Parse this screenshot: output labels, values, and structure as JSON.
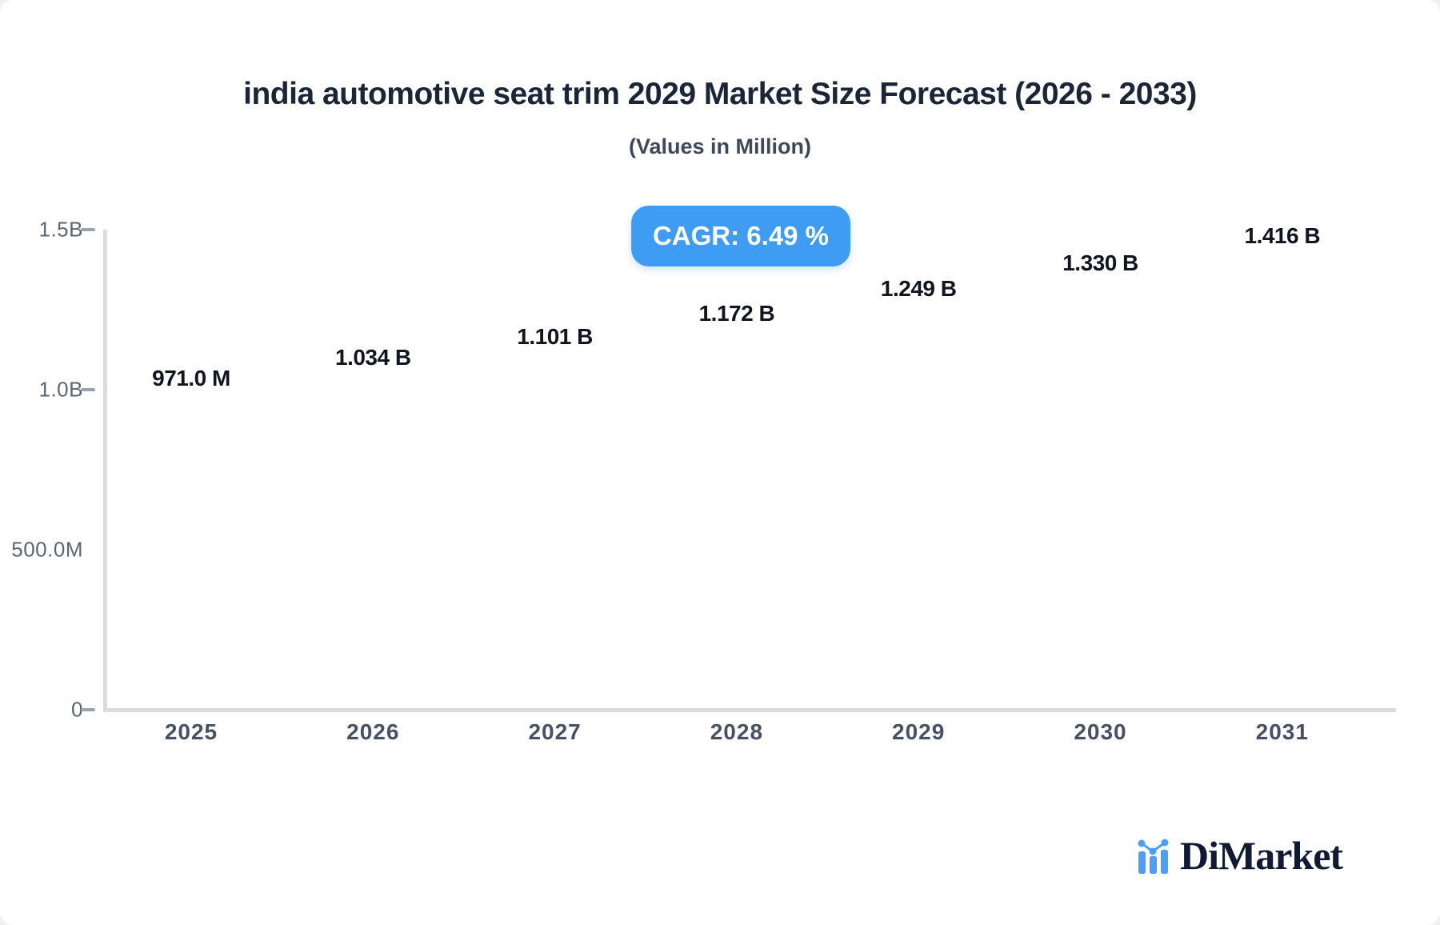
{
  "title": "india automotive seat trim 2029 Market Size Forecast (2026 - 2033)",
  "subtitle": "(Values in Million)",
  "badge": {
    "label": "CAGR: 6.49 %",
    "bg_color": "#3E9CF2",
    "text_color": "#ffffff"
  },
  "chart_data": {
    "type": "bar",
    "title": "india automotive seat trim 2029 Market Size Forecast (2026 - 2033)",
    "subtitle": "(Values in Million)",
    "categories": [
      "2025",
      "2026",
      "2027",
      "2028",
      "2029",
      "2030",
      "2031"
    ],
    "values": [
      971,
      1034,
      1101,
      1172,
      1249,
      1330,
      1416
    ],
    "unit": "million",
    "value_labels": [
      "971.0 M",
      "1.034 B",
      "1.101 B",
      "1.172 B",
      "1.249 B",
      "1.330 B",
      "1.416 B"
    ],
    "xlabel": "",
    "ylabel": "",
    "ylim": [
      0,
      1500
    ],
    "yticks": [
      {
        "label": "1.5B",
        "value": 1500,
        "dash": true
      },
      {
        "label": "1.0B",
        "value": 1000,
        "dash": true
      },
      {
        "label": "500.0M",
        "value": 500,
        "dash": false
      },
      {
        "label": "0",
        "value": 0,
        "dash": true
      }
    ],
    "grid": false,
    "legend": null,
    "colors": {
      "bar_top": "#5FACF1",
      "bar_bottom": "#3E9CF2",
      "bar_side": "#2E76B9",
      "axis": "#d8dbe1"
    }
  },
  "logo": {
    "text": "DiMarket",
    "icon": "mini-bar-chart-icon",
    "accent_color": "#4AA0F5",
    "text_color": "#101b33"
  }
}
